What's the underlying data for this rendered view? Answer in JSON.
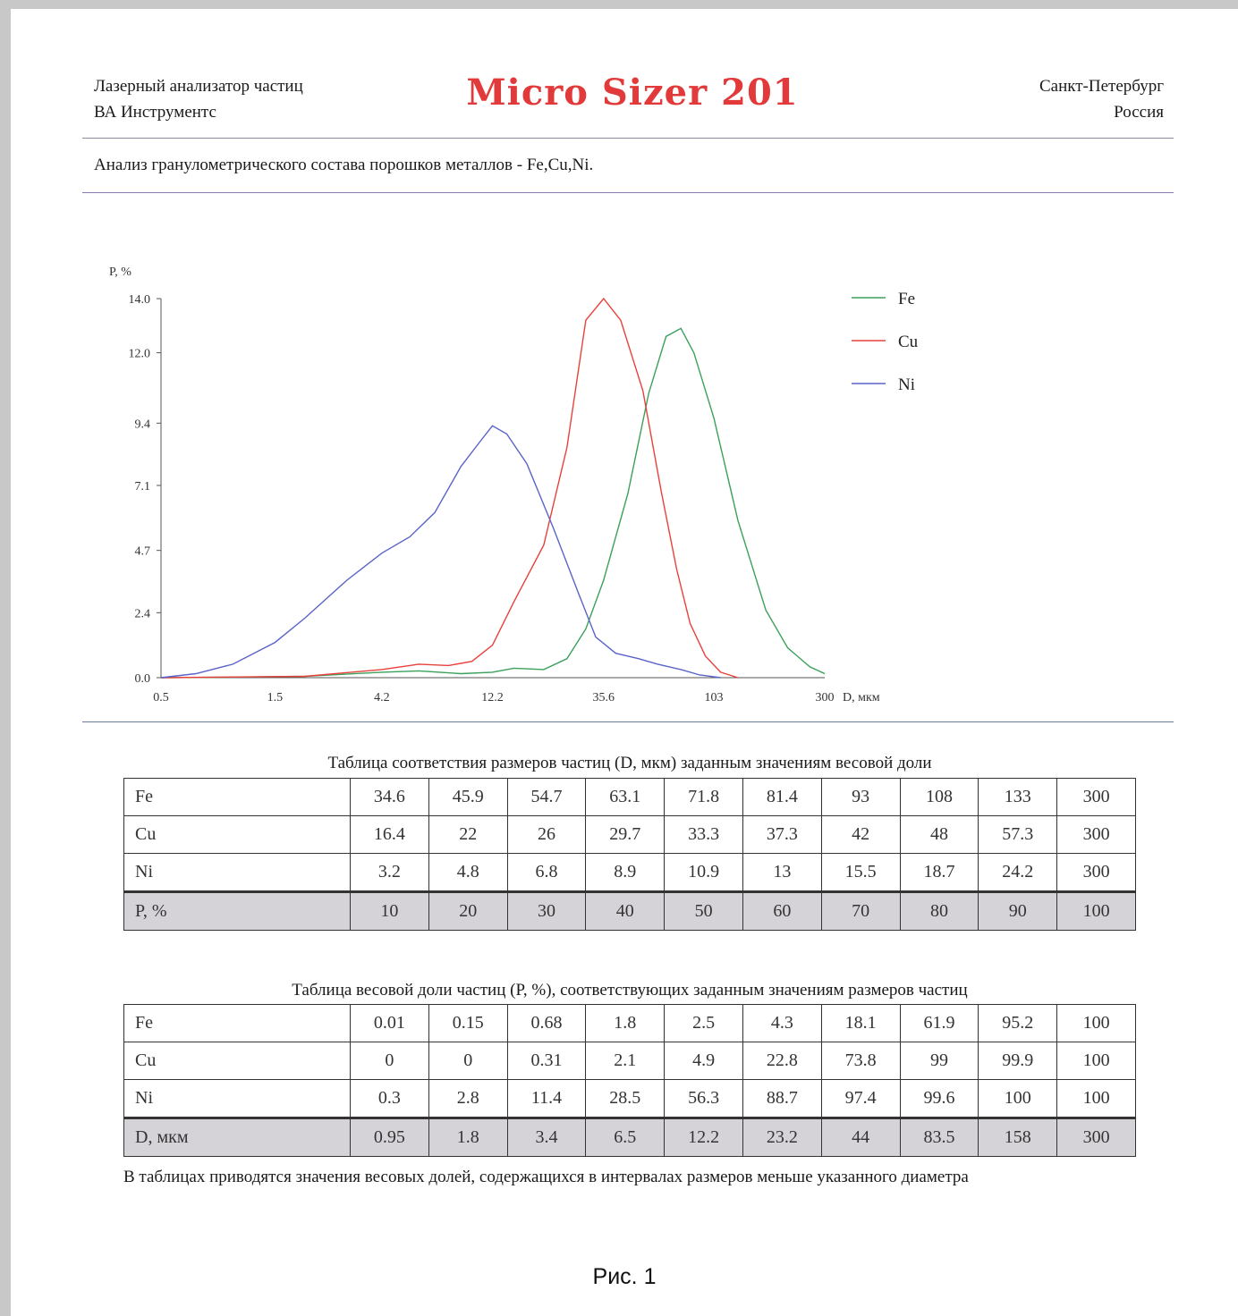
{
  "header": {
    "left_line1": "Лазерный анализатор частиц",
    "left_line2": "ВА Инструментс",
    "logo_text": "Micro Sizer 201",
    "right_line1": "Санкт-Петербург",
    "right_line2": "Россия"
  },
  "subtitle": "Анализ гранулометрического состава порошков металлов - Fe,Cu,Ni.",
  "colors": {
    "Fe": "#3aa05a",
    "Cu": "#e8413c",
    "Ni": "#5a64c8",
    "logo": "#e23a3a"
  },
  "chart_data": {
    "type": "line",
    "ylabel": "P, %",
    "xlabel": "D, мкм",
    "x_scale": "log",
    "xlim": [
      0.5,
      300
    ],
    "ylim": [
      0,
      14
    ],
    "x_ticks": [
      "0.5",
      "1.5",
      "4.2",
      "12.2",
      "35.6",
      "103",
      "300"
    ],
    "y_ticks": [
      "0.0",
      "2.4",
      "4.7",
      "7.1",
      "9.4",
      "12.0",
      "14.0"
    ],
    "legend_position": "top-right",
    "grid": false,
    "series": [
      {
        "name": "Fe",
        "points": [
          [
            0.5,
            0
          ],
          [
            1,
            0.02
          ],
          [
            2,
            0.05
          ],
          [
            4.2,
            0.2
          ],
          [
            6,
            0.25
          ],
          [
            9,
            0.15
          ],
          [
            12.2,
            0.2
          ],
          [
            15,
            0.35
          ],
          [
            20,
            0.3
          ],
          [
            25,
            0.7
          ],
          [
            30,
            1.8
          ],
          [
            35.6,
            3.6
          ],
          [
            45,
            6.8
          ],
          [
            55,
            10.5
          ],
          [
            65,
            12.6
          ],
          [
            75,
            12.9
          ],
          [
            85,
            12.0
          ],
          [
            103,
            9.6
          ],
          [
            130,
            5.8
          ],
          [
            170,
            2.5
          ],
          [
            210,
            1.1
          ],
          [
            260,
            0.4
          ],
          [
            300,
            0.15
          ]
        ]
      },
      {
        "name": "Cu",
        "points": [
          [
            0.5,
            0
          ],
          [
            2,
            0.05
          ],
          [
            4.2,
            0.3
          ],
          [
            6,
            0.5
          ],
          [
            8,
            0.45
          ],
          [
            10,
            0.6
          ],
          [
            12.2,
            1.2
          ],
          [
            15,
            2.8
          ],
          [
            20,
            4.9
          ],
          [
            25,
            8.5
          ],
          [
            30,
            13.2
          ],
          [
            35.6,
            14.0
          ],
          [
            42,
            13.2
          ],
          [
            52,
            10.6
          ],
          [
            62,
            6.9
          ],
          [
            72,
            4.0
          ],
          [
            82,
            2.0
          ],
          [
            95,
            0.8
          ],
          [
            110,
            0.2
          ],
          [
            130,
            0
          ]
        ]
      },
      {
        "name": "Ni",
        "points": [
          [
            0.5,
            0
          ],
          [
            0.7,
            0.15
          ],
          [
            1,
            0.5
          ],
          [
            1.5,
            1.3
          ],
          [
            2,
            2.2
          ],
          [
            3,
            3.6
          ],
          [
            4.2,
            4.6
          ],
          [
            5.5,
            5.2
          ],
          [
            7,
            6.1
          ],
          [
            9,
            7.8
          ],
          [
            11,
            8.8
          ],
          [
            12.2,
            9.3
          ],
          [
            14,
            9.0
          ],
          [
            17,
            7.9
          ],
          [
            22,
            5.5
          ],
          [
            28,
            3.1
          ],
          [
            33,
            1.5
          ],
          [
            40,
            0.9
          ],
          [
            50,
            0.7
          ],
          [
            60,
            0.5
          ],
          [
            75,
            0.3
          ],
          [
            90,
            0.1
          ],
          [
            110,
            0
          ]
        ]
      }
    ]
  },
  "table1": {
    "caption": "Таблица соответствия размеров частиц (D, мкм) заданным значениям весовой доли",
    "rows": [
      {
        "label": "Fe",
        "values": [
          "34.6",
          "45.9",
          "54.7",
          "63.1",
          "71.8",
          "81.4",
          "93",
          "108",
          "133",
          "300"
        ]
      },
      {
        "label": "Cu",
        "values": [
          "16.4",
          "22",
          "26",
          "29.7",
          "33.3",
          "37.3",
          "42",
          "48",
          "57.3",
          "300"
        ]
      },
      {
        "label": "Ni",
        "values": [
          "3.2",
          "4.8",
          "6.8",
          "8.9",
          "10.9",
          "13",
          "15.5",
          "18.7",
          "24.2",
          "300"
        ]
      },
      {
        "label": "P, %",
        "values": [
          "10",
          "20",
          "30",
          "40",
          "50",
          "60",
          "70",
          "80",
          "90",
          "100"
        ]
      }
    ]
  },
  "table2": {
    "caption": "Таблица весовой доли частиц (P, %), соответствующих заданным значениям размеров частиц",
    "rows": [
      {
        "label": "Fe",
        "values": [
          "0.01",
          "0.15",
          "0.68",
          "1.8",
          "2.5",
          "4.3",
          "18.1",
          "61.9",
          "95.2",
          "100"
        ]
      },
      {
        "label": "Cu",
        "values": [
          "0",
          "0",
          "0.31",
          "2.1",
          "4.9",
          "22.8",
          "73.8",
          "99",
          "99.9",
          "100"
        ]
      },
      {
        "label": "Ni",
        "values": [
          "0.3",
          "2.8",
          "11.4",
          "28.5",
          "56.3",
          "88.7",
          "97.4",
          "99.6",
          "100",
          "100"
        ]
      },
      {
        "label": "D, мкм",
        "values": [
          "0.95",
          "1.8",
          "3.4",
          "6.5",
          "12.2",
          "23.2",
          "44",
          "83.5",
          "158",
          "300"
        ]
      }
    ]
  },
  "footnote": "В таблицах приводятся значения весовых долей, содержащихся в интервалах размеров меньше указанного диаметра",
  "figure_caption": "Рис. 1"
}
